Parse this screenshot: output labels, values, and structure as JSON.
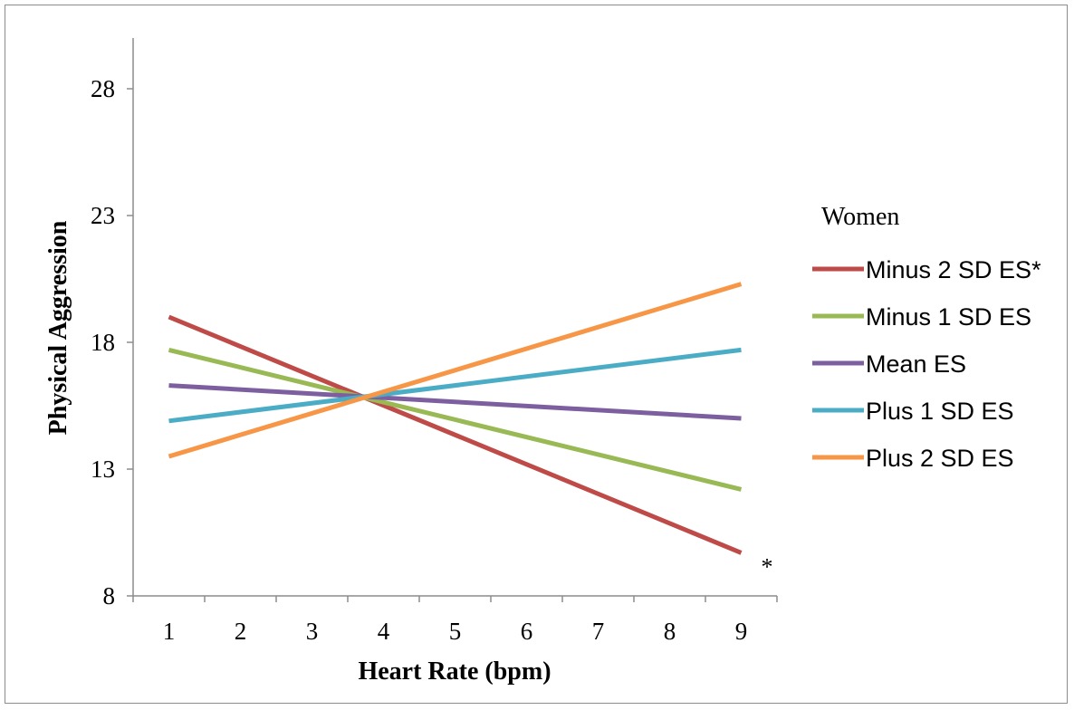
{
  "chart_data": {
    "type": "line",
    "xlabel": "Heart Rate (bpm)",
    "ylabel": "Physical Aggression",
    "x": [
      1,
      9
    ],
    "xticks": [
      "1",
      "2",
      "3",
      "4",
      "5",
      "6",
      "7",
      "8",
      "9"
    ],
    "yticks": [
      "8",
      "13",
      "18",
      "23",
      "28"
    ],
    "ylim": [
      8,
      30
    ],
    "legend_title": "Women",
    "legend_position": "right",
    "grid": false,
    "series": [
      {
        "name": "Minus 2 SD ES*",
        "color": "#BE4B48",
        "values": [
          19.0,
          9.7
        ]
      },
      {
        "name": "Minus 1 SD ES",
        "color": "#98B954",
        "values": [
          17.7,
          12.2
        ]
      },
      {
        "name": "Mean ES",
        "color": "#7D5FA0",
        "values": [
          16.3,
          15.0
        ]
      },
      {
        "name": "Plus 1 SD ES",
        "color": "#4BACC6",
        "values": [
          14.9,
          17.7
        ]
      },
      {
        "name": "Plus 2 SD ES",
        "color": "#F79646",
        "values": [
          13.5,
          20.3
        ]
      }
    ],
    "annotations": [
      {
        "text": "*",
        "x": 9,
        "y": 9.7
      }
    ]
  }
}
